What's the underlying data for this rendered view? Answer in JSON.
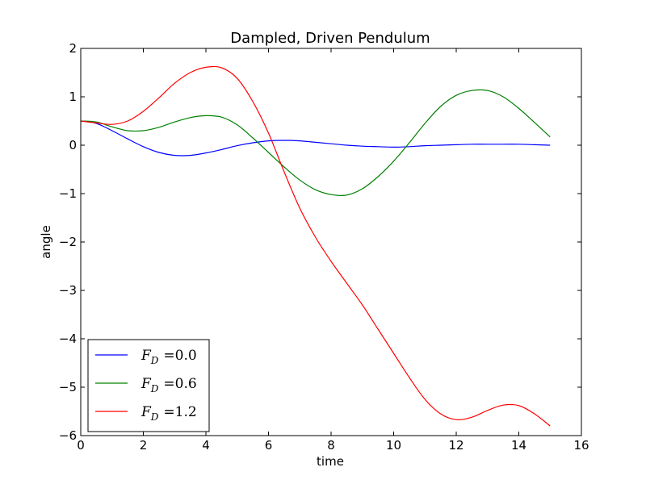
{
  "chart_data": {
    "type": "line",
    "title": "Dampled, Driven Pendulum",
    "xlabel": "time",
    "ylabel": "angle",
    "xlim": [
      0,
      16
    ],
    "ylim": [
      -6,
      2
    ],
    "xticks": [
      0,
      2,
      4,
      6,
      8,
      10,
      12,
      14,
      16
    ],
    "yticks": [
      -6,
      -5,
      -4,
      -3,
      -2,
      -1,
      0,
      1,
      2
    ],
    "grid": false,
    "legend_placement": "lower-left",
    "series": [
      {
        "name": "F_D = 0.0",
        "legend_label": {
          "symbol": "F",
          "subscript": "D",
          "value": "=0.0"
        },
        "color": "#0000ff",
        "x": [
          0,
          0.5,
          1,
          1.5,
          2,
          2.5,
          3,
          3.5,
          4,
          4.5,
          5,
          5.5,
          6,
          6.5,
          7,
          7.5,
          8,
          8.5,
          9,
          9.5,
          10,
          10.5,
          11,
          11.5,
          12,
          12.5,
          13,
          13.5,
          14,
          14.5,
          15
        ],
        "y": [
          0.5,
          0.45,
          0.3,
          0.13,
          -0.03,
          -0.15,
          -0.21,
          -0.21,
          -0.16,
          -0.09,
          -0.01,
          0.05,
          0.09,
          0.1,
          0.09,
          0.06,
          0.03,
          0.0,
          -0.02,
          -0.03,
          -0.04,
          -0.03,
          -0.01,
          0.0,
          0.01,
          0.02,
          0.02,
          0.02,
          0.02,
          0.01,
          0.0
        ]
      },
      {
        "name": "F_D = 0.6",
        "legend_label": {
          "symbol": "F",
          "subscript": "D",
          "value": "=0.6"
        },
        "color": "#008000",
        "x": [
          0,
          0.5,
          1,
          1.5,
          2,
          2.5,
          3,
          3.5,
          4,
          4.5,
          5,
          5.5,
          6,
          6.5,
          7,
          7.5,
          8,
          8.5,
          9,
          9.5,
          10,
          10.5,
          11,
          11.5,
          12,
          12.5,
          13,
          13.5,
          14,
          14.5,
          15
        ],
        "y": [
          0.5,
          0.48,
          0.38,
          0.3,
          0.3,
          0.37,
          0.48,
          0.57,
          0.61,
          0.58,
          0.42,
          0.15,
          -0.15,
          -0.45,
          -0.72,
          -0.92,
          -1.02,
          -1.03,
          -0.9,
          -0.65,
          -0.33,
          0.05,
          0.45,
          0.8,
          1.03,
          1.13,
          1.13,
          1.0,
          0.76,
          0.47,
          0.17
        ]
      },
      {
        "name": "F_D = 1.2",
        "legend_label": {
          "symbol": "F",
          "subscript": "D",
          "value": "=1.2"
        },
        "color": "#ff0000",
        "x": [
          0,
          0.5,
          1,
          1.5,
          2,
          2.5,
          3,
          3.5,
          4,
          4.5,
          5,
          5.5,
          6,
          6.5,
          7,
          7.5,
          8,
          8.5,
          9,
          9.5,
          10,
          10.5,
          11,
          11.5,
          12,
          12.5,
          13,
          13.5,
          14,
          14.5,
          15
        ],
        "y": [
          0.5,
          0.46,
          0.43,
          0.5,
          0.7,
          0.98,
          1.28,
          1.5,
          1.61,
          1.6,
          1.38,
          0.9,
          0.25,
          -0.55,
          -1.3,
          -1.9,
          -2.4,
          -2.85,
          -3.3,
          -3.8,
          -4.3,
          -4.8,
          -5.25,
          -5.55,
          -5.67,
          -5.62,
          -5.48,
          -5.37,
          -5.38,
          -5.55,
          -5.8
        ]
      }
    ]
  }
}
